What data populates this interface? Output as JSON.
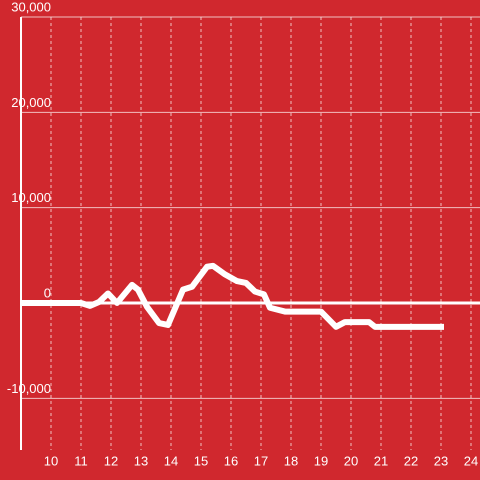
{
  "chart_data": {
    "type": "line",
    "x": [
      9,
      11,
      11.3,
      11.6,
      11.9,
      12.2,
      12.7,
      12.9,
      13.2,
      13.6,
      13.9,
      14.4,
      14.7,
      15.2,
      15.4,
      15.8,
      16.2,
      16.5,
      16.8,
      17.1,
      17.3,
      17.8,
      19,
      19.5,
      19.8,
      20.6,
      20.8,
      23.1
    ],
    "series": [
      {
        "color": "#ffffff",
        "values": [
          0,
          0,
          -300,
          100,
          1000,
          0,
          1900,
          1400,
          -400,
          -2100,
          -2300,
          1400,
          1700,
          3800,
          3900,
          3000,
          2300,
          2100,
          1200,
          900,
          -500,
          -900,
          -900,
          -2500,
          -2000,
          -2000,
          -2500,
          -2500
        ]
      }
    ],
    "xlim": [
      9,
      24.3
    ],
    "xticks": [
      10,
      11,
      12,
      13,
      14,
      15,
      16,
      17,
      18,
      19,
      20,
      21,
      22,
      23,
      24
    ],
    "ylim": [
      -15000,
      30000
    ],
    "yticks": [
      {
        "value": -10000,
        "label": "-10,000"
      },
      0,
      {
        "value": 10000,
        "label": "10,000"
      },
      {
        "value": 20000,
        "label": "20,000"
      },
      {
        "value": 30000,
        "label": "30,000"
      }
    ],
    "grid": true
  }
}
